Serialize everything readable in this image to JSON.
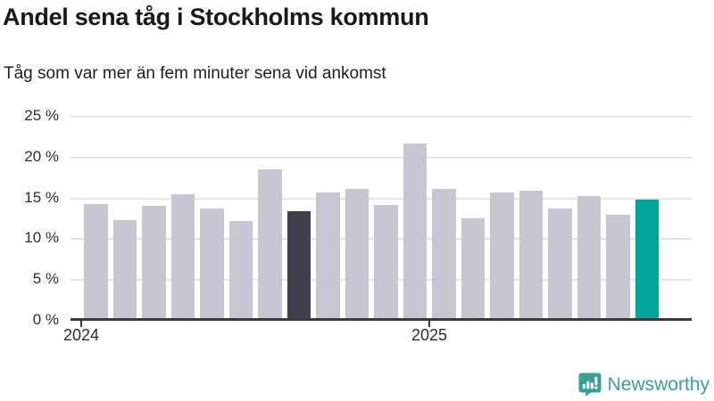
{
  "header": {
    "title": "Andel sena tåg i Stockholms kommun",
    "subtitle": "Tåg som var mer än fem minuter sena vid ankomst"
  },
  "chart_data": {
    "type": "bar",
    "unit": "%",
    "x": [
      "2024-01",
      "2024-02",
      "2024-03",
      "2024-04",
      "2024-05",
      "2024-06",
      "2024-07",
      "2024-08",
      "2024-09",
      "2024-10",
      "2024-11",
      "2024-12",
      "2025-01",
      "2025-02",
      "2025-03",
      "2025-04",
      "2025-05",
      "2025-06",
      "2025-07",
      "2025-08"
    ],
    "values": [
      14.2,
      12.2,
      14.0,
      15.4,
      13.6,
      12.1,
      18.4,
      13.3,
      15.6,
      16.1,
      14.1,
      21.6,
      16.0,
      12.5,
      15.6,
      15.8,
      13.6,
      15.2,
      12.9,
      14.7
    ],
    "ylim": [
      0,
      25
    ],
    "yticks": [
      {
        "value": 0,
        "label": "0 %"
      },
      {
        "value": 5,
        "label": "5 %"
      },
      {
        "value": 10,
        "label": "10 %"
      },
      {
        "value": 15,
        "label": "15 %"
      },
      {
        "value": 20,
        "label": "20 %"
      },
      {
        "value": 25,
        "label": "25 %"
      }
    ],
    "xticks": [
      {
        "label": "2024",
        "month_index": 0
      },
      {
        "label": "2025",
        "month_index": 12
      }
    ],
    "grid": "horizontal",
    "legend": "none",
    "colors": {
      "default_bar": "#c8c6d2",
      "highlights": [
        {
          "index": 7,
          "color": "#413e4d"
        },
        {
          "index": 19,
          "color": "#00a69b"
        }
      ],
      "axis": "#3b3b3b",
      "gridline": "#e5e4e9"
    }
  },
  "footer": {
    "brand": "Newsworthy",
    "logo_color": "#3aa096"
  }
}
